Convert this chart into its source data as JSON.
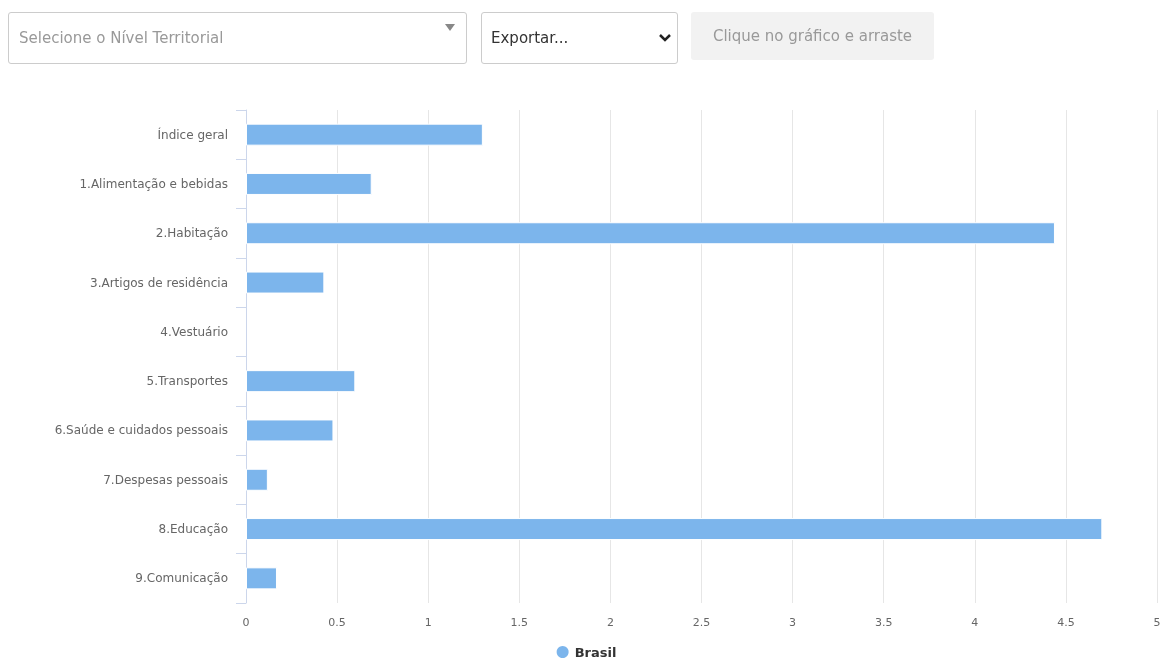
{
  "chart_data": {
    "type": "bar",
    "orientation": "horizontal",
    "categories": [
      "Índice geral",
      "1.Alimentação e bebidas",
      "2.Habitação",
      "3.Artigos de residência",
      "4.Vestuário",
      "5.Transportes",
      "6.Saúde e cuidados pessoais",
      "7.Despesas pessoais",
      "8.Educação",
      "9.Comunicação"
    ],
    "series": [
      {
        "name": "Brasil",
        "color": "#7cb5ec",
        "values": [
          1.3,
          0.69,
          4.44,
          0.43,
          null,
          0.6,
          0.48,
          0.12,
          4.7,
          0.17
        ]
      }
    ],
    "xlim": [
      0,
      5
    ],
    "xticks": [
      0,
      0.5,
      1,
      1.5,
      2,
      2.5,
      3,
      3.5,
      4,
      4.5,
      5
    ],
    "grid": "x",
    "legend": "bottom",
    "annotations": [
      "Selecione o Nível Territorial",
      "Exportar...",
      "Clique no gráfico e arraste"
    ]
  }
}
